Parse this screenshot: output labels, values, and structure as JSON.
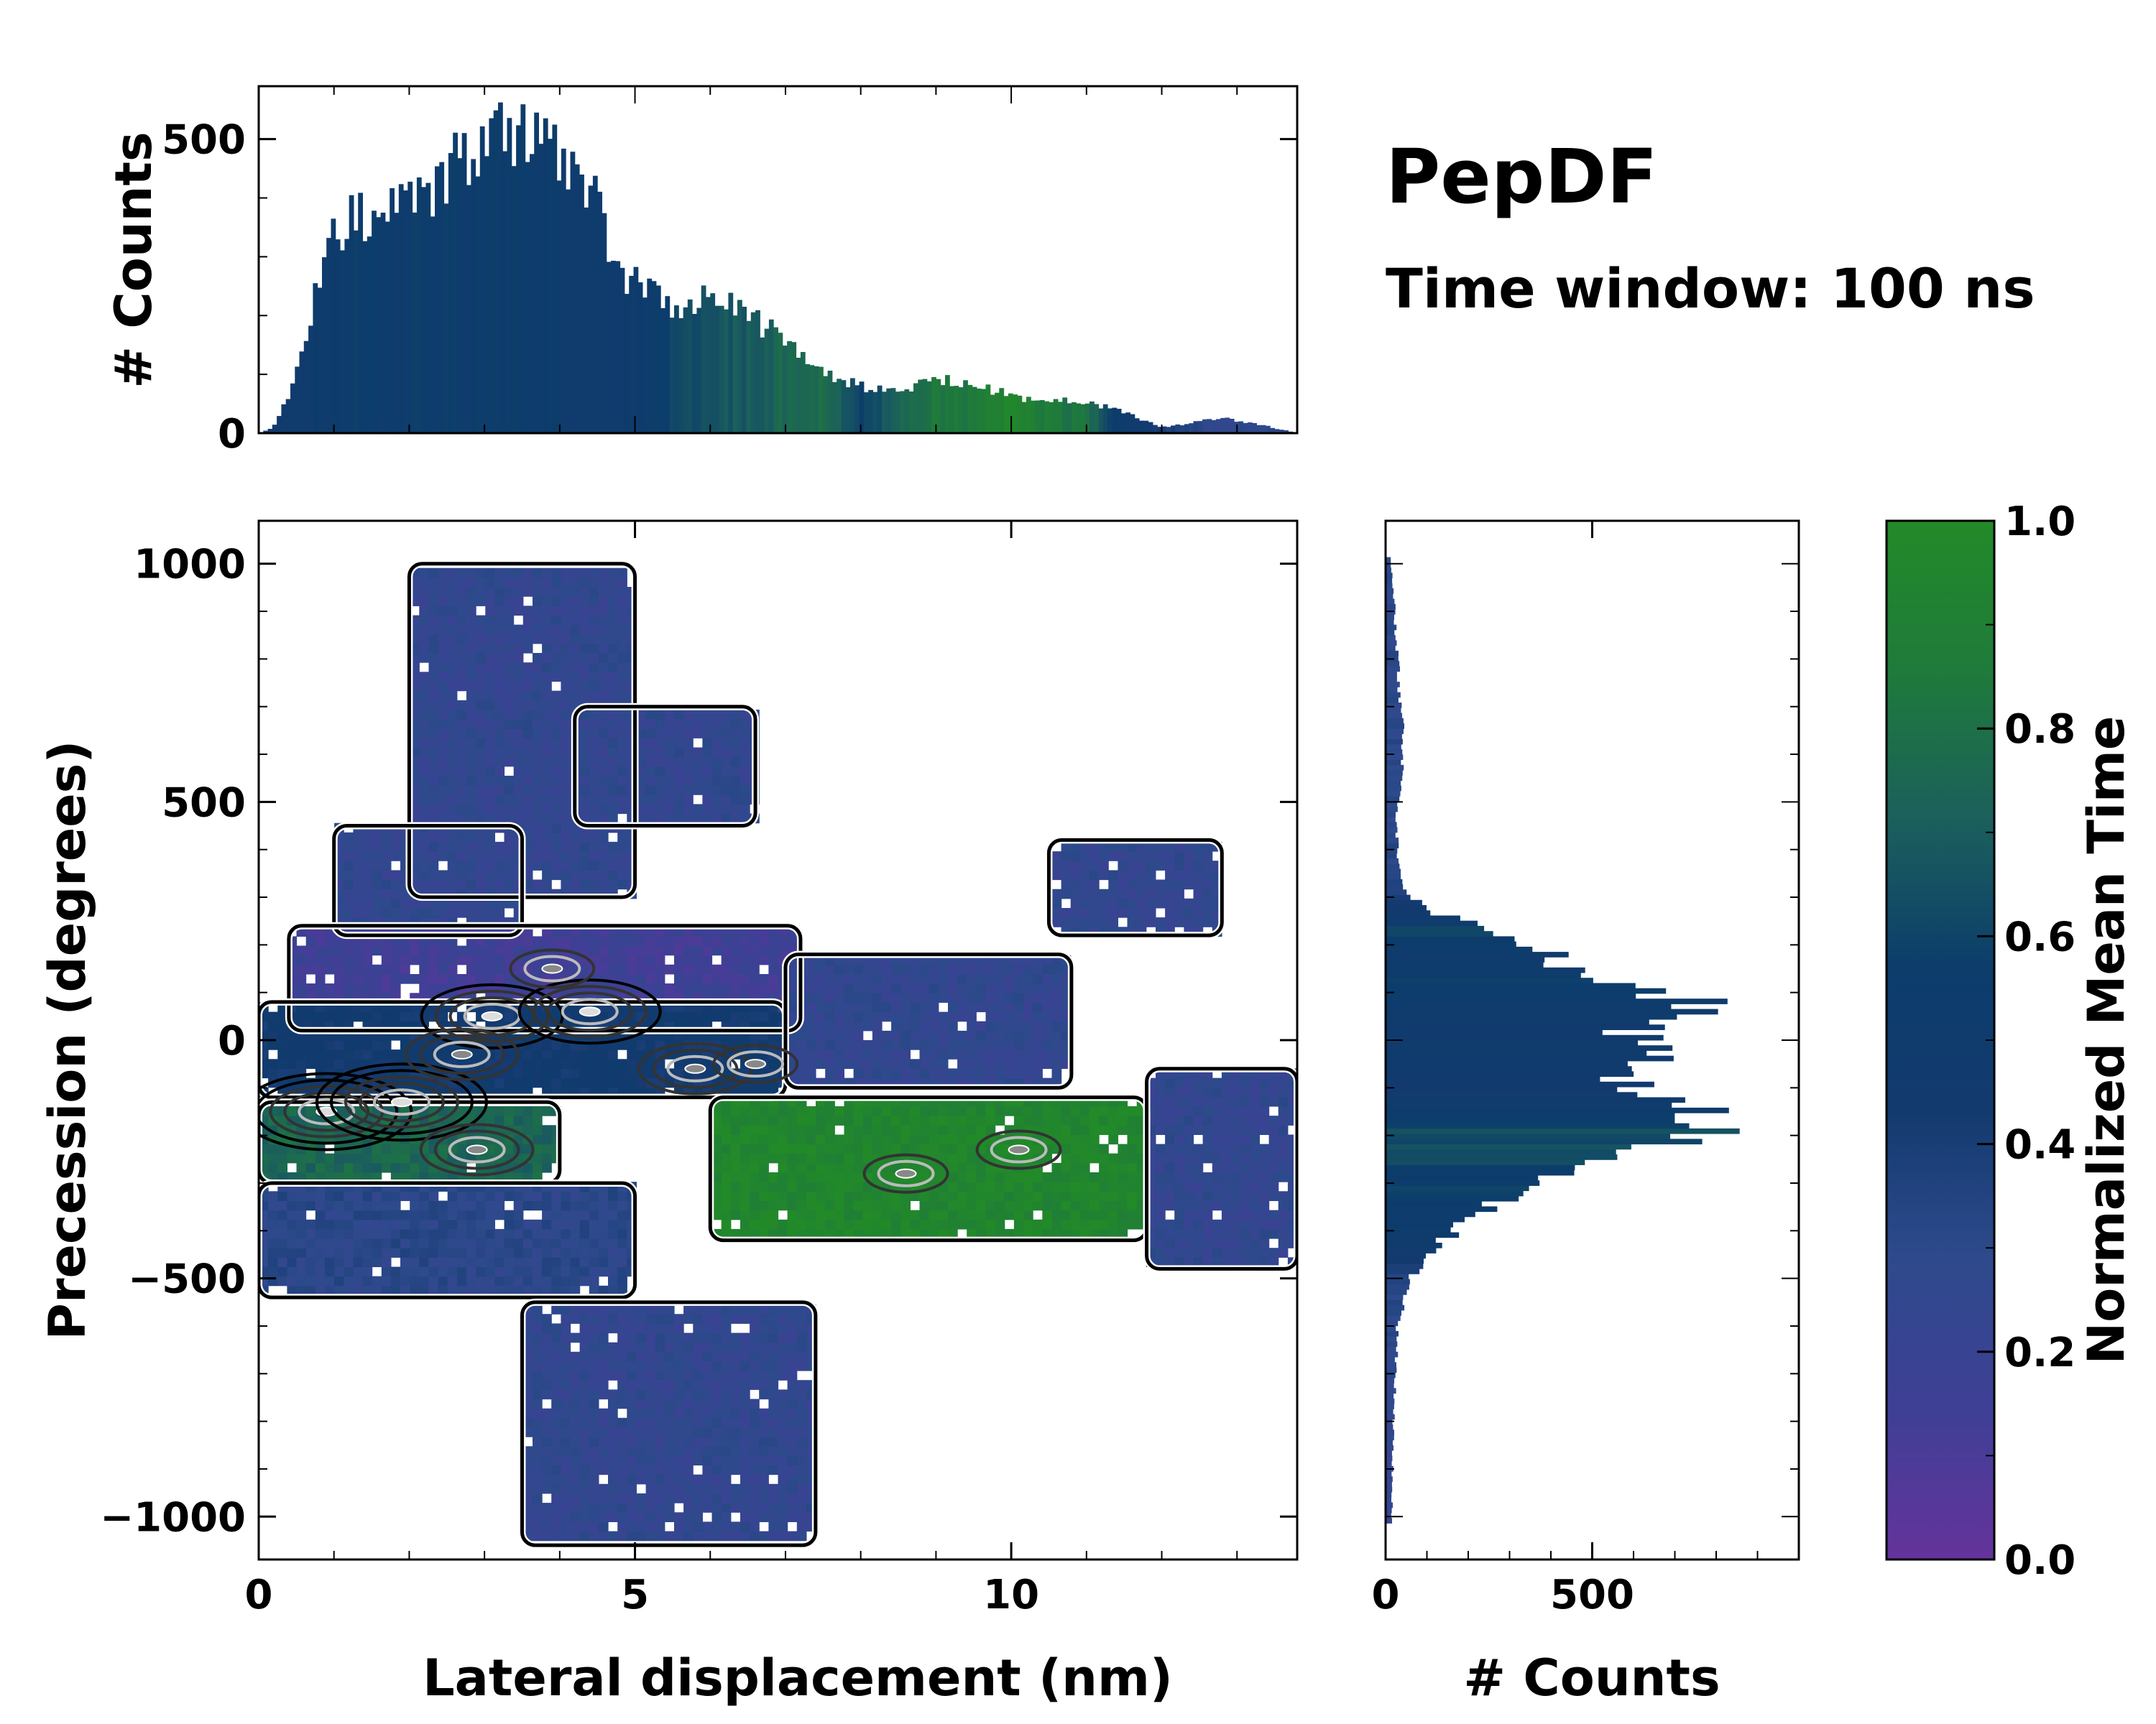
{
  "title": "PepDF",
  "subtitle": "Time window: 100 ns",
  "colors": {
    "cmap": [
      "#65339b",
      "#3f3f96",
      "#2e4a8c",
      "#133a6f",
      "#0c3d6b",
      "#1b5f5c",
      "#1f7b3a",
      "#228a28"
    ],
    "contour_outer": "#000000",
    "contour_mid": "#333333",
    "contour_inner": "#bbbbbb"
  },
  "chart_data": [
    {
      "id": "top-hist",
      "type": "bar",
      "ylabel": "# Counts",
      "xlim": [
        0,
        13.8
      ],
      "ylim": [
        0,
        590
      ],
      "yticks": [
        0,
        500
      ],
      "anchors_x": [
        0,
        0.2,
        0.5,
        0.9,
        1.3,
        1.7,
        2.2,
        2.7,
        3.0,
        3.5,
        4.0,
        4.4,
        4.8,
        5.2,
        5.6,
        6.0,
        6.5,
        7.0,
        7.5,
        8.0,
        8.5,
        9.0,
        9.5,
        10.0,
        10.5,
        11.0,
        11.5,
        12.0,
        12.5,
        12.8,
        13.3,
        13.8
      ],
      "anchors_count": [
        0,
        10,
        100,
        320,
        380,
        370,
        400,
        470,
        500,
        510,
        490,
        420,
        280,
        240,
        220,
        250,
        200,
        170,
        100,
        80,
        70,
        95,
        85,
        65,
        55,
        55,
        35,
        10,
        20,
        25,
        15,
        0
      ],
      "anchors_time": [
        0.35,
        0.45,
        0.5,
        0.52,
        0.55,
        0.55,
        0.55,
        0.55,
        0.55,
        0.55,
        0.52,
        0.5,
        0.5,
        0.55,
        0.6,
        0.65,
        0.7,
        0.75,
        0.8,
        0.6,
        0.72,
        0.85,
        0.85,
        0.95,
        0.85,
        0.8,
        0.5,
        0.4,
        0.3,
        0.25,
        0.3,
        0.3
      ]
    },
    {
      "id": "main-heatmap",
      "type": "heatmap",
      "xlabel": "Lateral displacement (nm)",
      "ylabel": "Precession (degrees)",
      "xlim": [
        0,
        13.8
      ],
      "ylim": [
        -1090,
        1090
      ],
      "xticks": [
        0,
        5,
        10
      ],
      "yticks": [
        -1000,
        -500,
        0,
        500,
        1000
      ],
      "ytick_labels": [
        "−1000",
        "−500",
        "0",
        "500",
        "1000"
      ],
      "regions": [
        {
          "name": "top-cluster",
          "x": [
            2.0,
            5.0
          ],
          "y": [
            300,
            1000
          ],
          "time": 0.25
        },
        {
          "name": "top-right-lobe",
          "x": [
            4.2,
            6.6
          ],
          "y": [
            450,
            700
          ],
          "time": 0.25
        },
        {
          "name": "left-upper-arm",
          "x": [
            1.0,
            3.5
          ],
          "y": [
            220,
            450
          ],
          "time": 0.25
        },
        {
          "name": "main-band-upper",
          "x": [
            0.4,
            7.2
          ],
          "y": [
            20,
            240
          ],
          "time": 0.15
        },
        {
          "name": "main-band-core",
          "x": [
            0.0,
            7.0
          ],
          "y": [
            -120,
            80
          ],
          "time": 0.45
        },
        {
          "name": "main-band-green-left",
          "x": [
            0.0,
            4.0
          ],
          "y": [
            -300,
            -130
          ],
          "time": 0.75
        },
        {
          "name": "main-band-green-right",
          "x": [
            6.0,
            11.8
          ],
          "y": [
            -420,
            -120
          ],
          "time": 0.95
        },
        {
          "name": "lower-left-arm",
          "x": [
            0.0,
            5.0
          ],
          "y": [
            -540,
            -300
          ],
          "time": 0.3
        },
        {
          "name": "bottom-cluster",
          "x": [
            3.5,
            7.4
          ],
          "y": [
            -1060,
            -550
          ],
          "time": 0.25
        },
        {
          "name": "mid-right",
          "x": [
            7.0,
            10.8
          ],
          "y": [
            -100,
            180
          ],
          "time": 0.25
        },
        {
          "name": "upper-right-island",
          "x": [
            10.5,
            12.8
          ],
          "y": [
            220,
            420
          ],
          "time": 0.25
        },
        {
          "name": "far-right",
          "x": [
            11.8,
            13.8
          ],
          "y": [
            -480,
            -60
          ],
          "time": 0.25
        }
      ],
      "hotspots": [
        {
          "x": 0.9,
          "y": -150,
          "level": 5
        },
        {
          "x": 1.9,
          "y": -130,
          "level": 5
        },
        {
          "x": 3.1,
          "y": 50,
          "level": 4
        },
        {
          "x": 4.4,
          "y": 60,
          "level": 4
        },
        {
          "x": 2.7,
          "y": -30,
          "level": 3
        },
        {
          "x": 5.8,
          "y": -60,
          "level": 3
        },
        {
          "x": 2.9,
          "y": -230,
          "level": 3
        },
        {
          "x": 10.1,
          "y": -230,
          "level": 2
        },
        {
          "x": 8.6,
          "y": -280,
          "level": 2
        },
        {
          "x": 3.9,
          "y": 150,
          "level": 2
        },
        {
          "x": 6.6,
          "y": -50,
          "level": 2
        }
      ]
    },
    {
      "id": "right-hist",
      "type": "bar",
      "orientation": "horizontal",
      "xlabel": "# Counts",
      "xlim": [
        0,
        1000
      ],
      "ylim": [
        -1090,
        1090
      ],
      "xticks": [
        0,
        500
      ],
      "anchors_y": [
        -1000,
        -800,
        -600,
        -500,
        -420,
        -340,
        -260,
        -200,
        -130,
        -80,
        -30,
        20,
        70,
        120,
        170,
        230,
        270,
        330,
        450,
        600,
        800,
        1000
      ],
      "anchors_count": [
        15,
        20,
        30,
        60,
        140,
        280,
        500,
        770,
        750,
        550,
        720,
        620,
        800,
        550,
        420,
        300,
        100,
        40,
        25,
        45,
        30,
        15
      ],
      "anchors_time": [
        0.25,
        0.25,
        0.3,
        0.35,
        0.5,
        0.55,
        0.6,
        0.65,
        0.5,
        0.45,
        0.5,
        0.45,
        0.5,
        0.55,
        0.5,
        0.6,
        0.45,
        0.35,
        0.3,
        0.3,
        0.3,
        0.3
      ]
    },
    {
      "id": "colorbar",
      "type": "colorbar",
      "label": "Normalized Mean Time",
      "range": [
        0.0,
        1.0
      ],
      "ticks": [
        "0.0",
        "0.2",
        "0.4",
        "0.6",
        "0.8",
        "1.0"
      ],
      "tick_values": [
        0.0,
        0.2,
        0.4,
        0.6,
        0.8,
        1.0
      ]
    }
  ]
}
